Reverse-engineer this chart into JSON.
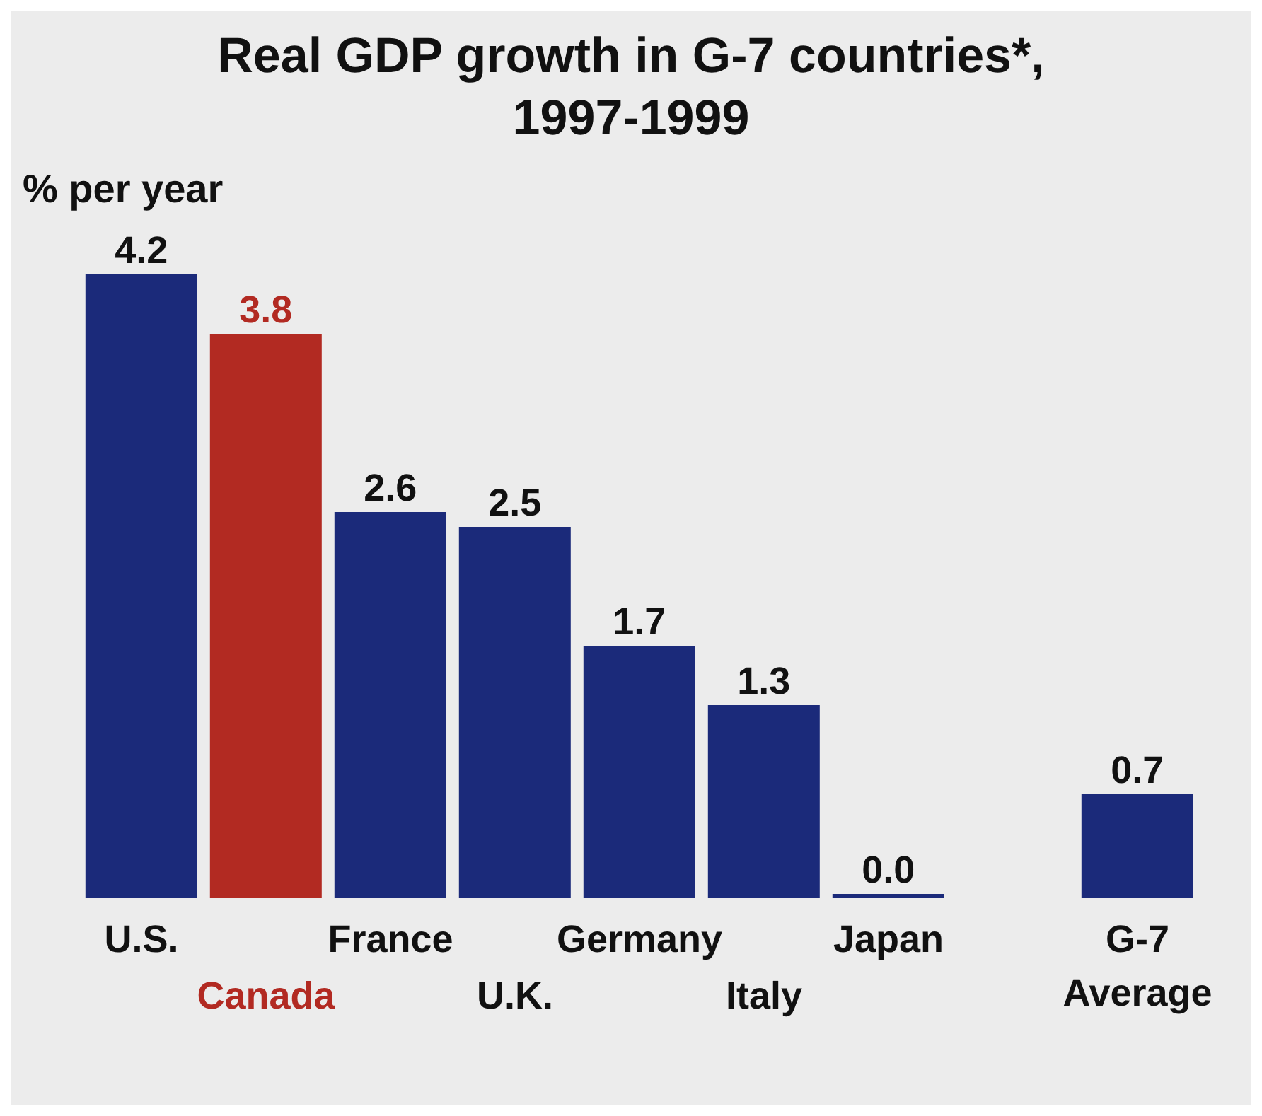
{
  "chart_data": {
    "type": "bar",
    "title": "Real GDP growth in G-7 countries*, 1997-1999",
    "ylabel": "% per year",
    "categories": [
      "U.S.",
      "Canada",
      "France",
      "U.K.",
      "Germany",
      "Italy",
      "Japan",
      null,
      "G-7 Average"
    ],
    "values": [
      4.2,
      3.8,
      2.6,
      2.5,
      1.7,
      1.3,
      0.0,
      null,
      0.7
    ],
    "colors": [
      "#1b2a7a",
      "#b22a22",
      "#1b2a7a",
      "#1b2a7a",
      "#1b2a7a",
      "#1b2a7a",
      "#1b2a7a",
      "#1b2a7a",
      "#1b2a7a"
    ],
    "value_labels": [
      "4.2",
      "3.8",
      "2.6",
      "2.5",
      "1.7",
      "1.3",
      "0.0",
      null,
      "0.7"
    ],
    "grid": false,
    "legend": false
  }
}
